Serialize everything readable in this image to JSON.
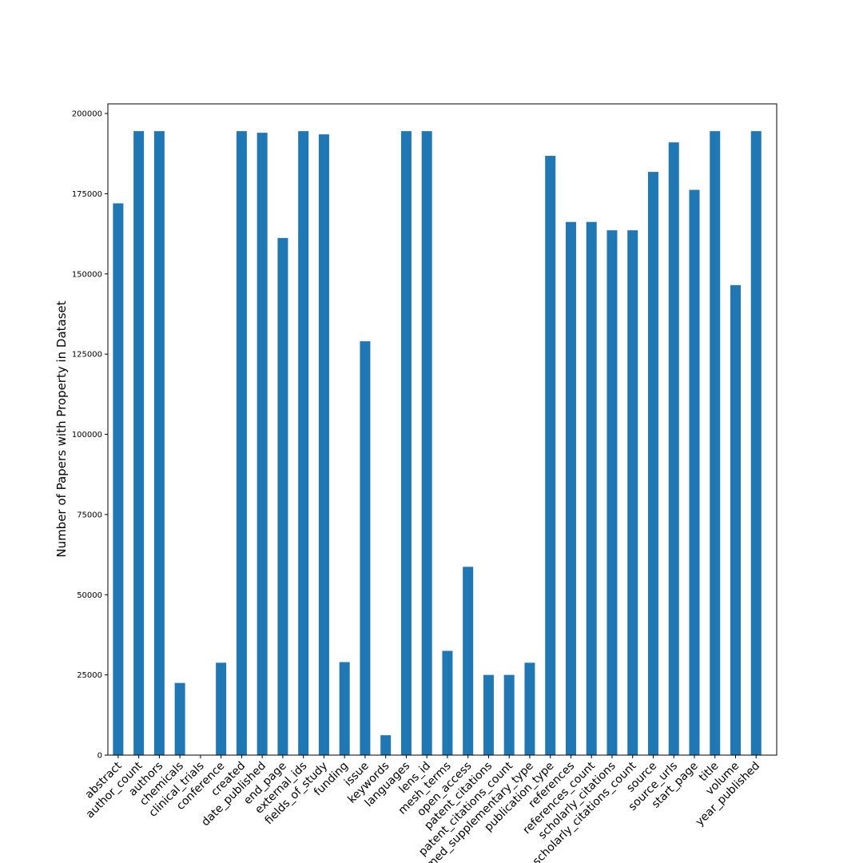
{
  "chart_data": {
    "type": "bar",
    "title": "",
    "xlabel": "",
    "ylabel": "Number of Papers with Property in Dataset",
    "ylim": [
      0,
      203000
    ],
    "yticks": [
      0,
      25000,
      50000,
      75000,
      100000,
      125000,
      150000,
      175000,
      200000
    ],
    "grid": false,
    "legend": "none",
    "bar_color": "#1f77b4",
    "categories": [
      "abstract",
      "author_count",
      "authors",
      "chemicals",
      "clinical_trials",
      "conference",
      "created",
      "date_published",
      "end_page",
      "external_ids",
      "fields_of_study",
      "funding",
      "issue",
      "keywords",
      "languages",
      "lens_id",
      "mesh_terms",
      "open_access",
      "patent_citations",
      "patent_citations_count",
      "pubmed_supplementary_type",
      "publication_type",
      "references",
      "references_count",
      "scholarly_citations",
      "scholarly_citations_count",
      "source",
      "source_urls",
      "start_page",
      "title",
      "volume",
      "year_published"
    ],
    "values": [
      172000,
      194500,
      194500,
      22500,
      0,
      28800,
      194500,
      194000,
      161200,
      194500,
      193500,
      29000,
      129000,
      6200,
      194500,
      194500,
      32500,
      58700,
      25000,
      25000,
      28800,
      186800,
      166200,
      166200,
      163600,
      163600,
      181800,
      191000,
      176200,
      194500,
      146500,
      194500
    ]
  }
}
